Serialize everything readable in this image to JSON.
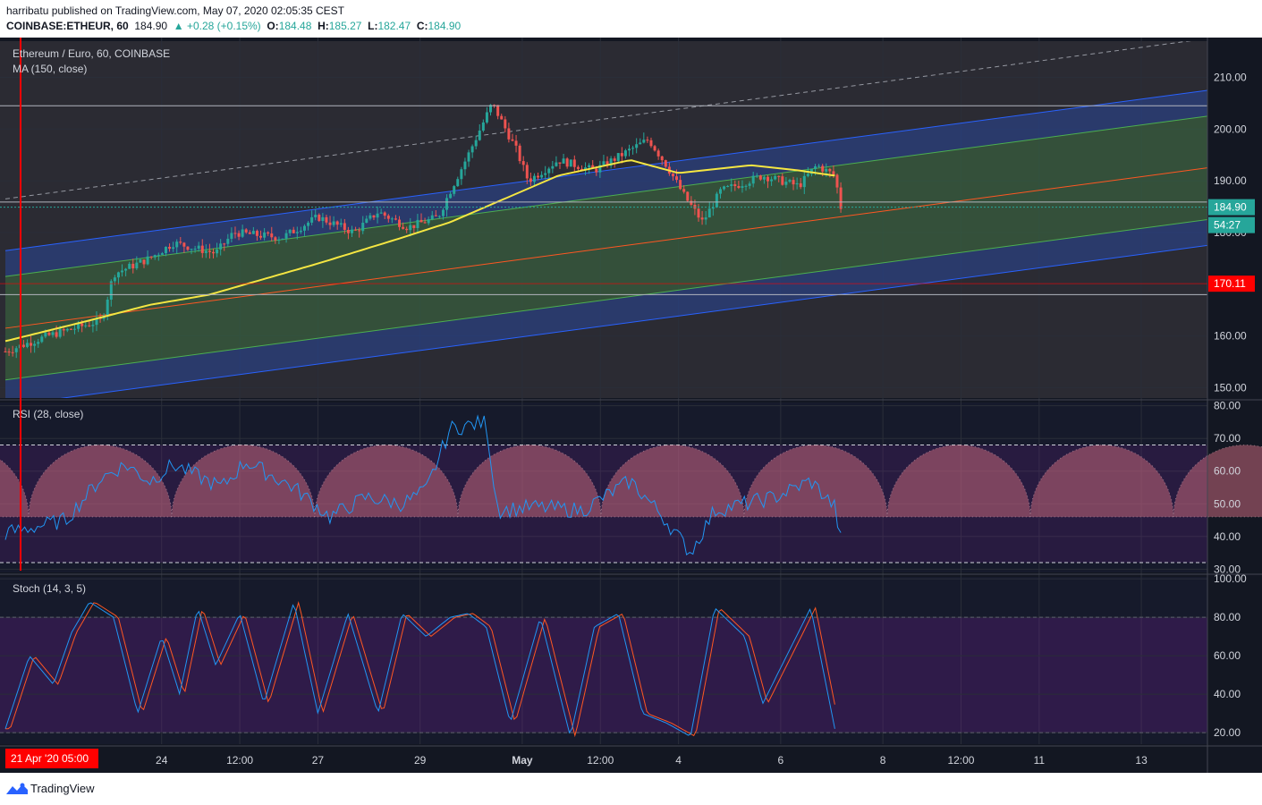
{
  "header": {
    "publisher_line": "harribatu published on TradingView.com, May 07, 2020 02:05:35 CEST",
    "symbol": "COINBASE:ETHEUR, 60",
    "last": "184.90",
    "change": "▲ +0.28 (+0.15%)",
    "o_label": "O:",
    "o_value": "184.48",
    "h_label": "H:",
    "h_value": "185.27",
    "l_label": "L:",
    "l_value": "182.47",
    "c_label": "C:",
    "c_value": "184.90"
  },
  "footer": {
    "brand": "TradingView"
  },
  "colors": {
    "background": "#131722",
    "grid": "#2a2e39",
    "up": "#26a69a",
    "down": "#ef5350",
    "ma": "#f5e642",
    "channel_outer": "#2962ff",
    "channel_inner": "#4caf50",
    "channel_mid": "#ff5722",
    "rsi": "#2196f3",
    "stoch_k": "#2196f3",
    "stoch_d": "#ff5722",
    "price_label": "#26a69a",
    "alert_label": "#ff0000",
    "cursor_line": "#ff0000"
  },
  "chart_data": [
    {
      "type": "candlestick",
      "pane": "price",
      "title": "Ethereum / Euro, 60, COINBASE",
      "indicator": "MA (150, close)",
      "ylim": [
        148,
        217
      ],
      "yticks": [
        "210.00",
        "200.00",
        "190.00",
        "180.00",
        "170.00",
        "160.00",
        "150.00"
      ],
      "xticks": [
        "24",
        "12:00",
        "27",
        "29",
        "May",
        "12:00",
        "4",
        "6",
        "8",
        "12:00",
        "11",
        "13"
      ],
      "cursor_label": "21 Apr '20   05:00",
      "last_price_label": "184.90",
      "countdown_label": "54:27",
      "alert_level_label": "170.11",
      "horizontal_lines": [
        204.5,
        185.9,
        168.0
      ],
      "price_anchor_points": [
        {
          "t": 0,
          "p": 157
        },
        {
          "t": 0.035,
          "p": 160
        },
        {
          "t": 0.08,
          "p": 163
        },
        {
          "t": 0.09,
          "p": 172
        },
        {
          "t": 0.12,
          "p": 175
        },
        {
          "t": 0.14,
          "p": 178
        },
        {
          "t": 0.175,
          "p": 176
        },
        {
          "t": 0.19,
          "p": 180
        },
        {
          "t": 0.23,
          "p": 179
        },
        {
          "t": 0.26,
          "p": 183
        },
        {
          "t": 0.29,
          "p": 180
        },
        {
          "t": 0.31,
          "p": 184
        },
        {
          "t": 0.335,
          "p": 181
        },
        {
          "t": 0.36,
          "p": 183
        },
        {
          "t": 0.37,
          "p": 188
        },
        {
          "t": 0.385,
          "p": 195
        },
        {
          "t": 0.405,
          "p": 205
        },
        {
          "t": 0.425,
          "p": 196
        },
        {
          "t": 0.435,
          "p": 190
        },
        {
          "t": 0.46,
          "p": 194
        },
        {
          "t": 0.49,
          "p": 192
        },
        {
          "t": 0.52,
          "p": 196
        },
        {
          "t": 0.535,
          "p": 198
        },
        {
          "t": 0.55,
          "p": 193
        },
        {
          "t": 0.565,
          "p": 187
        },
        {
          "t": 0.58,
          "p": 182
        },
        {
          "t": 0.595,
          "p": 188
        },
        {
          "t": 0.63,
          "p": 191
        },
        {
          "t": 0.66,
          "p": 189
        },
        {
          "t": 0.675,
          "p": 193
        },
        {
          "t": 0.69,
          "p": 191
        },
        {
          "t": 0.695,
          "p": 184.9
        }
      ],
      "ma_anchor_points": [
        {
          "t": 0,
          "p": 159
        },
        {
          "t": 0.07,
          "p": 163
        },
        {
          "t": 0.12,
          "p": 166
        },
        {
          "t": 0.17,
          "p": 168
        },
        {
          "t": 0.2,
          "p": 170
        },
        {
          "t": 0.26,
          "p": 174
        },
        {
          "t": 0.33,
          "p": 179
        },
        {
          "t": 0.37,
          "p": 182
        },
        {
          "t": 0.41,
          "p": 186
        },
        {
          "t": 0.46,
          "p": 191
        },
        {
          "t": 0.52,
          "p": 194
        },
        {
          "t": 0.56,
          "p": 191.5
        },
        {
          "t": 0.6,
          "p": 192.5
        },
        {
          "t": 0.62,
          "p": 193
        },
        {
          "t": 0.66,
          "p": 192
        },
        {
          "t": 0.69,
          "p": 191
        }
      ]
    },
    {
      "type": "line",
      "pane": "rsi",
      "title": "RSI (28, close)",
      "ylim": [
        29,
        81
      ],
      "yticks": [
        "80.00",
        "70.00",
        "60.00",
        "50.00",
        "40.00",
        "30.00"
      ],
      "bands": [
        68,
        32
      ],
      "arc_base": 46,
      "anchor_points": [
        {
          "t": 0,
          "p": 41
        },
        {
          "t": 0.05,
          "p": 45
        },
        {
          "t": 0.08,
          "p": 58
        },
        {
          "t": 0.1,
          "p": 62
        },
        {
          "t": 0.12,
          "p": 57
        },
        {
          "t": 0.14,
          "p": 62
        },
        {
          "t": 0.18,
          "p": 55
        },
        {
          "t": 0.2,
          "p": 63
        },
        {
          "t": 0.24,
          "p": 55
        },
        {
          "t": 0.27,
          "p": 46
        },
        {
          "t": 0.3,
          "p": 52
        },
        {
          "t": 0.33,
          "p": 50
        },
        {
          "t": 0.35,
          "p": 54
        },
        {
          "t": 0.37,
          "p": 73
        },
        {
          "t": 0.4,
          "p": 75
        },
        {
          "t": 0.405,
          "p": 60
        },
        {
          "t": 0.41,
          "p": 48
        },
        {
          "t": 0.44,
          "p": 49
        },
        {
          "t": 0.48,
          "p": 48
        },
        {
          "t": 0.52,
          "p": 57
        },
        {
          "t": 0.545,
          "p": 47
        },
        {
          "t": 0.57,
          "p": 35
        },
        {
          "t": 0.59,
          "p": 48
        },
        {
          "t": 0.64,
          "p": 52
        },
        {
          "t": 0.67,
          "p": 57
        },
        {
          "t": 0.69,
          "p": 49
        },
        {
          "t": 0.695,
          "p": 39
        }
      ]
    },
    {
      "type": "line",
      "pane": "stoch",
      "title": "Stoch (14, 3, 5)",
      "ylim": [
        14,
        101
      ],
      "yticks": [
        "100.00",
        "80.00",
        "60.00",
        "40.00",
        "20.00"
      ],
      "bands": [
        80,
        20
      ],
      "series": [
        {
          "anchor_points": [
            {
              "t": 0,
              "p": 22
            },
            {
              "t": 0.02,
              "p": 60
            },
            {
              "t": 0.04,
              "p": 45
            },
            {
              "t": 0.055,
              "p": 72
            },
            {
              "t": 0.07,
              "p": 88
            },
            {
              "t": 0.09,
              "p": 80
            },
            {
              "t": 0.11,
              "p": 30
            },
            {
              "t": 0.13,
              "p": 70
            },
            {
              "t": 0.145,
              "p": 40
            },
            {
              "t": 0.16,
              "p": 85
            },
            {
              "t": 0.175,
              "p": 55
            },
            {
              "t": 0.195,
              "p": 82
            },
            {
              "t": 0.215,
              "p": 35
            },
            {
              "t": 0.24,
              "p": 88
            },
            {
              "t": 0.26,
              "p": 30
            },
            {
              "t": 0.285,
              "p": 82
            },
            {
              "t": 0.31,
              "p": 30
            },
            {
              "t": 0.33,
              "p": 82
            },
            {
              "t": 0.35,
              "p": 70
            },
            {
              "t": 0.37,
              "p": 80
            },
            {
              "t": 0.385,
              "p": 82
            },
            {
              "t": 0.4,
              "p": 75
            },
            {
              "t": 0.42,
              "p": 25
            },
            {
              "t": 0.445,
              "p": 80
            },
            {
              "t": 0.47,
              "p": 18
            },
            {
              "t": 0.49,
              "p": 75
            },
            {
              "t": 0.51,
              "p": 82
            },
            {
              "t": 0.53,
              "p": 30
            },
            {
              "t": 0.55,
              "p": 25
            },
            {
              "t": 0.57,
              "p": 18
            },
            {
              "t": 0.59,
              "p": 85
            },
            {
              "t": 0.615,
              "p": 70
            },
            {
              "t": 0.63,
              "p": 35
            },
            {
              "t": 0.65,
              "p": 60
            },
            {
              "t": 0.67,
              "p": 85
            },
            {
              "t": 0.69,
              "p": 22
            }
          ]
        }
      ]
    }
  ]
}
